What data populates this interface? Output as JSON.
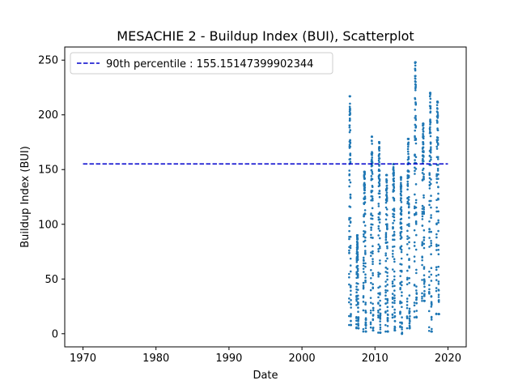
{
  "chart_data": {
    "type": "scatter",
    "title": "MESACHIE 2 - Buildup Index (BUI), Scatterplot",
    "xlabel": "Date",
    "ylabel": "Buildup Index (BUI)",
    "xlim": [
      1967.5,
      2022.5
    ],
    "ylim": [
      -12,
      262
    ],
    "xticks": [
      1970,
      1980,
      1990,
      2000,
      2010,
      2020
    ],
    "yticks": [
      0,
      50,
      100,
      150,
      200,
      250
    ],
    "grid": false,
    "legend_position": "top-left",
    "marker_color": "#1f77b4",
    "reference_line": {
      "label": "90th percentile : 155.15147399902344",
      "value": 155.15147399902344,
      "x_range": [
        1970,
        2020
      ],
      "color": "#0000cc",
      "style": "dashed"
    },
    "seasons": [
      {
        "year": 2006,
        "start": 2006.45,
        "end": 2006.72,
        "min": 8,
        "max": 217
      },
      {
        "year": 2007,
        "start": 2007.45,
        "end": 2007.75,
        "min": 5,
        "max": 90
      },
      {
        "year": 2008,
        "start": 2008.4,
        "end": 2008.78,
        "min": 2,
        "max": 148
      },
      {
        "year": 2009,
        "start": 2009.42,
        "end": 2009.78,
        "min": 3,
        "max": 180
      },
      {
        "year": 2010,
        "start": 2010.45,
        "end": 2010.75,
        "min": 1,
        "max": 175
      },
      {
        "year": 2011,
        "start": 2011.45,
        "end": 2011.78,
        "min": 2,
        "max": 145
      },
      {
        "year": 2012,
        "start": 2012.4,
        "end": 2012.75,
        "min": 3,
        "max": 155
      },
      {
        "year": 2013,
        "start": 2013.45,
        "end": 2013.72,
        "min": 0,
        "max": 143
      },
      {
        "year": 2014,
        "start": 2014.4,
        "end": 2014.78,
        "min": 5,
        "max": 178
      },
      {
        "year": 2015,
        "start": 2015.4,
        "end": 2015.72,
        "min": 15,
        "max": 248
      },
      {
        "year": 2016,
        "start": 2016.45,
        "end": 2016.8,
        "min": 30,
        "max": 192
      },
      {
        "year": 2017,
        "start": 2017.42,
        "end": 2017.78,
        "min": 2,
        "max": 220
      },
      {
        "year": 2018,
        "start": 2018.4,
        "end": 2018.78,
        "min": 18,
        "max": 212
      }
    ]
  }
}
